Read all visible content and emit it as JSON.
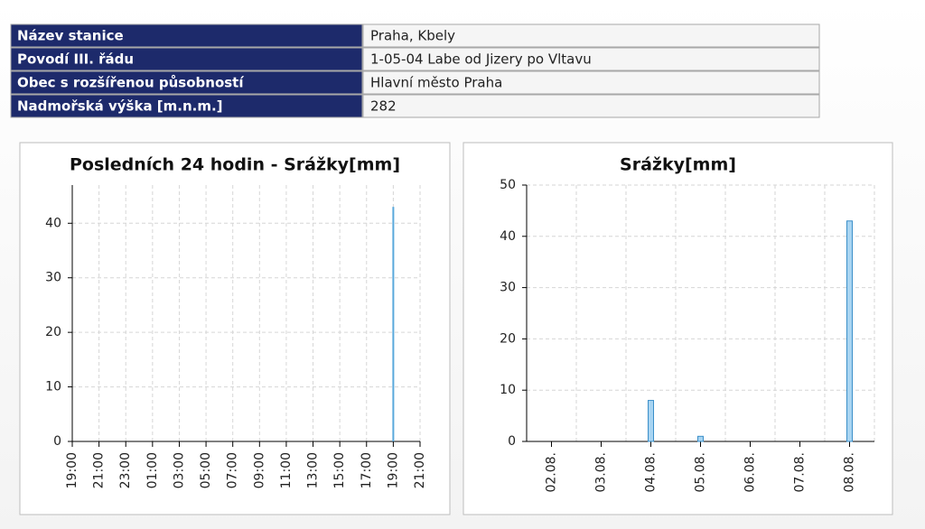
{
  "table": {
    "rows": [
      [
        "Název stanice",
        "Praha, Kbely"
      ],
      [
        "Povodí III. řádu",
        "1-05-04 Labe od Jizery po Vltavu"
      ],
      [
        "Obec s rozšířenou působností",
        "Hlavní město Praha"
      ],
      [
        "Nadmořská výška [m.n.m.]",
        "282"
      ]
    ]
  },
  "chart_data": [
    {
      "type": "bar",
      "title": "Posledních 24 hodin - Srážky[mm]",
      "categories": [
        "19:00",
        "21:00",
        "23:00",
        "01:00",
        "03:00",
        "05:00",
        "07:00",
        "09:00",
        "11:00",
        "13:00",
        "15:00",
        "17:00",
        "19:00",
        "21:00"
      ],
      "values": [
        0,
        0,
        0,
        0,
        0,
        0,
        0,
        0,
        0,
        0,
        0,
        0,
        43,
        0
      ],
      "color": "#5aa9dc",
      "ylim": [
        0,
        47
      ],
      "yticks": [
        0,
        10,
        20,
        30,
        40
      ],
      "grid": true
    },
    {
      "type": "bar",
      "title": "Srážky[mm]",
      "categories": [
        "02.08.",
        "03.08.",
        "04.08.",
        "05.08.",
        "06.08.",
        "07.08.",
        "08.08."
      ],
      "values": [
        0,
        0,
        8,
        1,
        0,
        0,
        43
      ],
      "color": "#a9d5f2",
      "ylim": [
        0,
        50
      ],
      "yticks": [
        0,
        10,
        20,
        30,
        40,
        50
      ],
      "grid": true
    }
  ]
}
